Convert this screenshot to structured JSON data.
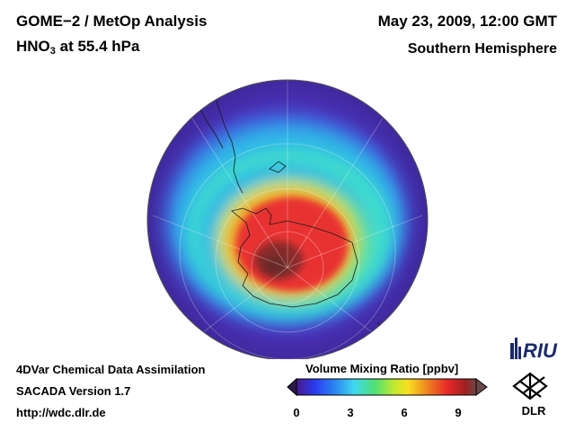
{
  "header": {
    "analysis": "GOME−2 / MetOp Analysis",
    "species": "HNO",
    "species_sub": "3",
    "level": "at 55.4 hPa",
    "datetime": "May 23, 2009, 12:00 GMT",
    "hemisphere": "Southern Hemisphere"
  },
  "footer": {
    "line1": "4DVar Chemical Data Assimilation",
    "line2": "SACADA Version 1.7",
    "line3": "http://wdc.dlr.de"
  },
  "colorbar": {
    "title": "Volume Mixing Ratio [ppbv]",
    "ticks": [
      "0",
      "3",
      "6",
      "9"
    ],
    "min": 0,
    "max": 10
  },
  "logos": {
    "riu": "RIU",
    "dlr": "DLR"
  },
  "map": {
    "projection": "orthographic, south polar view",
    "colors": {
      "background": "#4a30b8",
      "high_core": "#e83030"
    }
  }
}
